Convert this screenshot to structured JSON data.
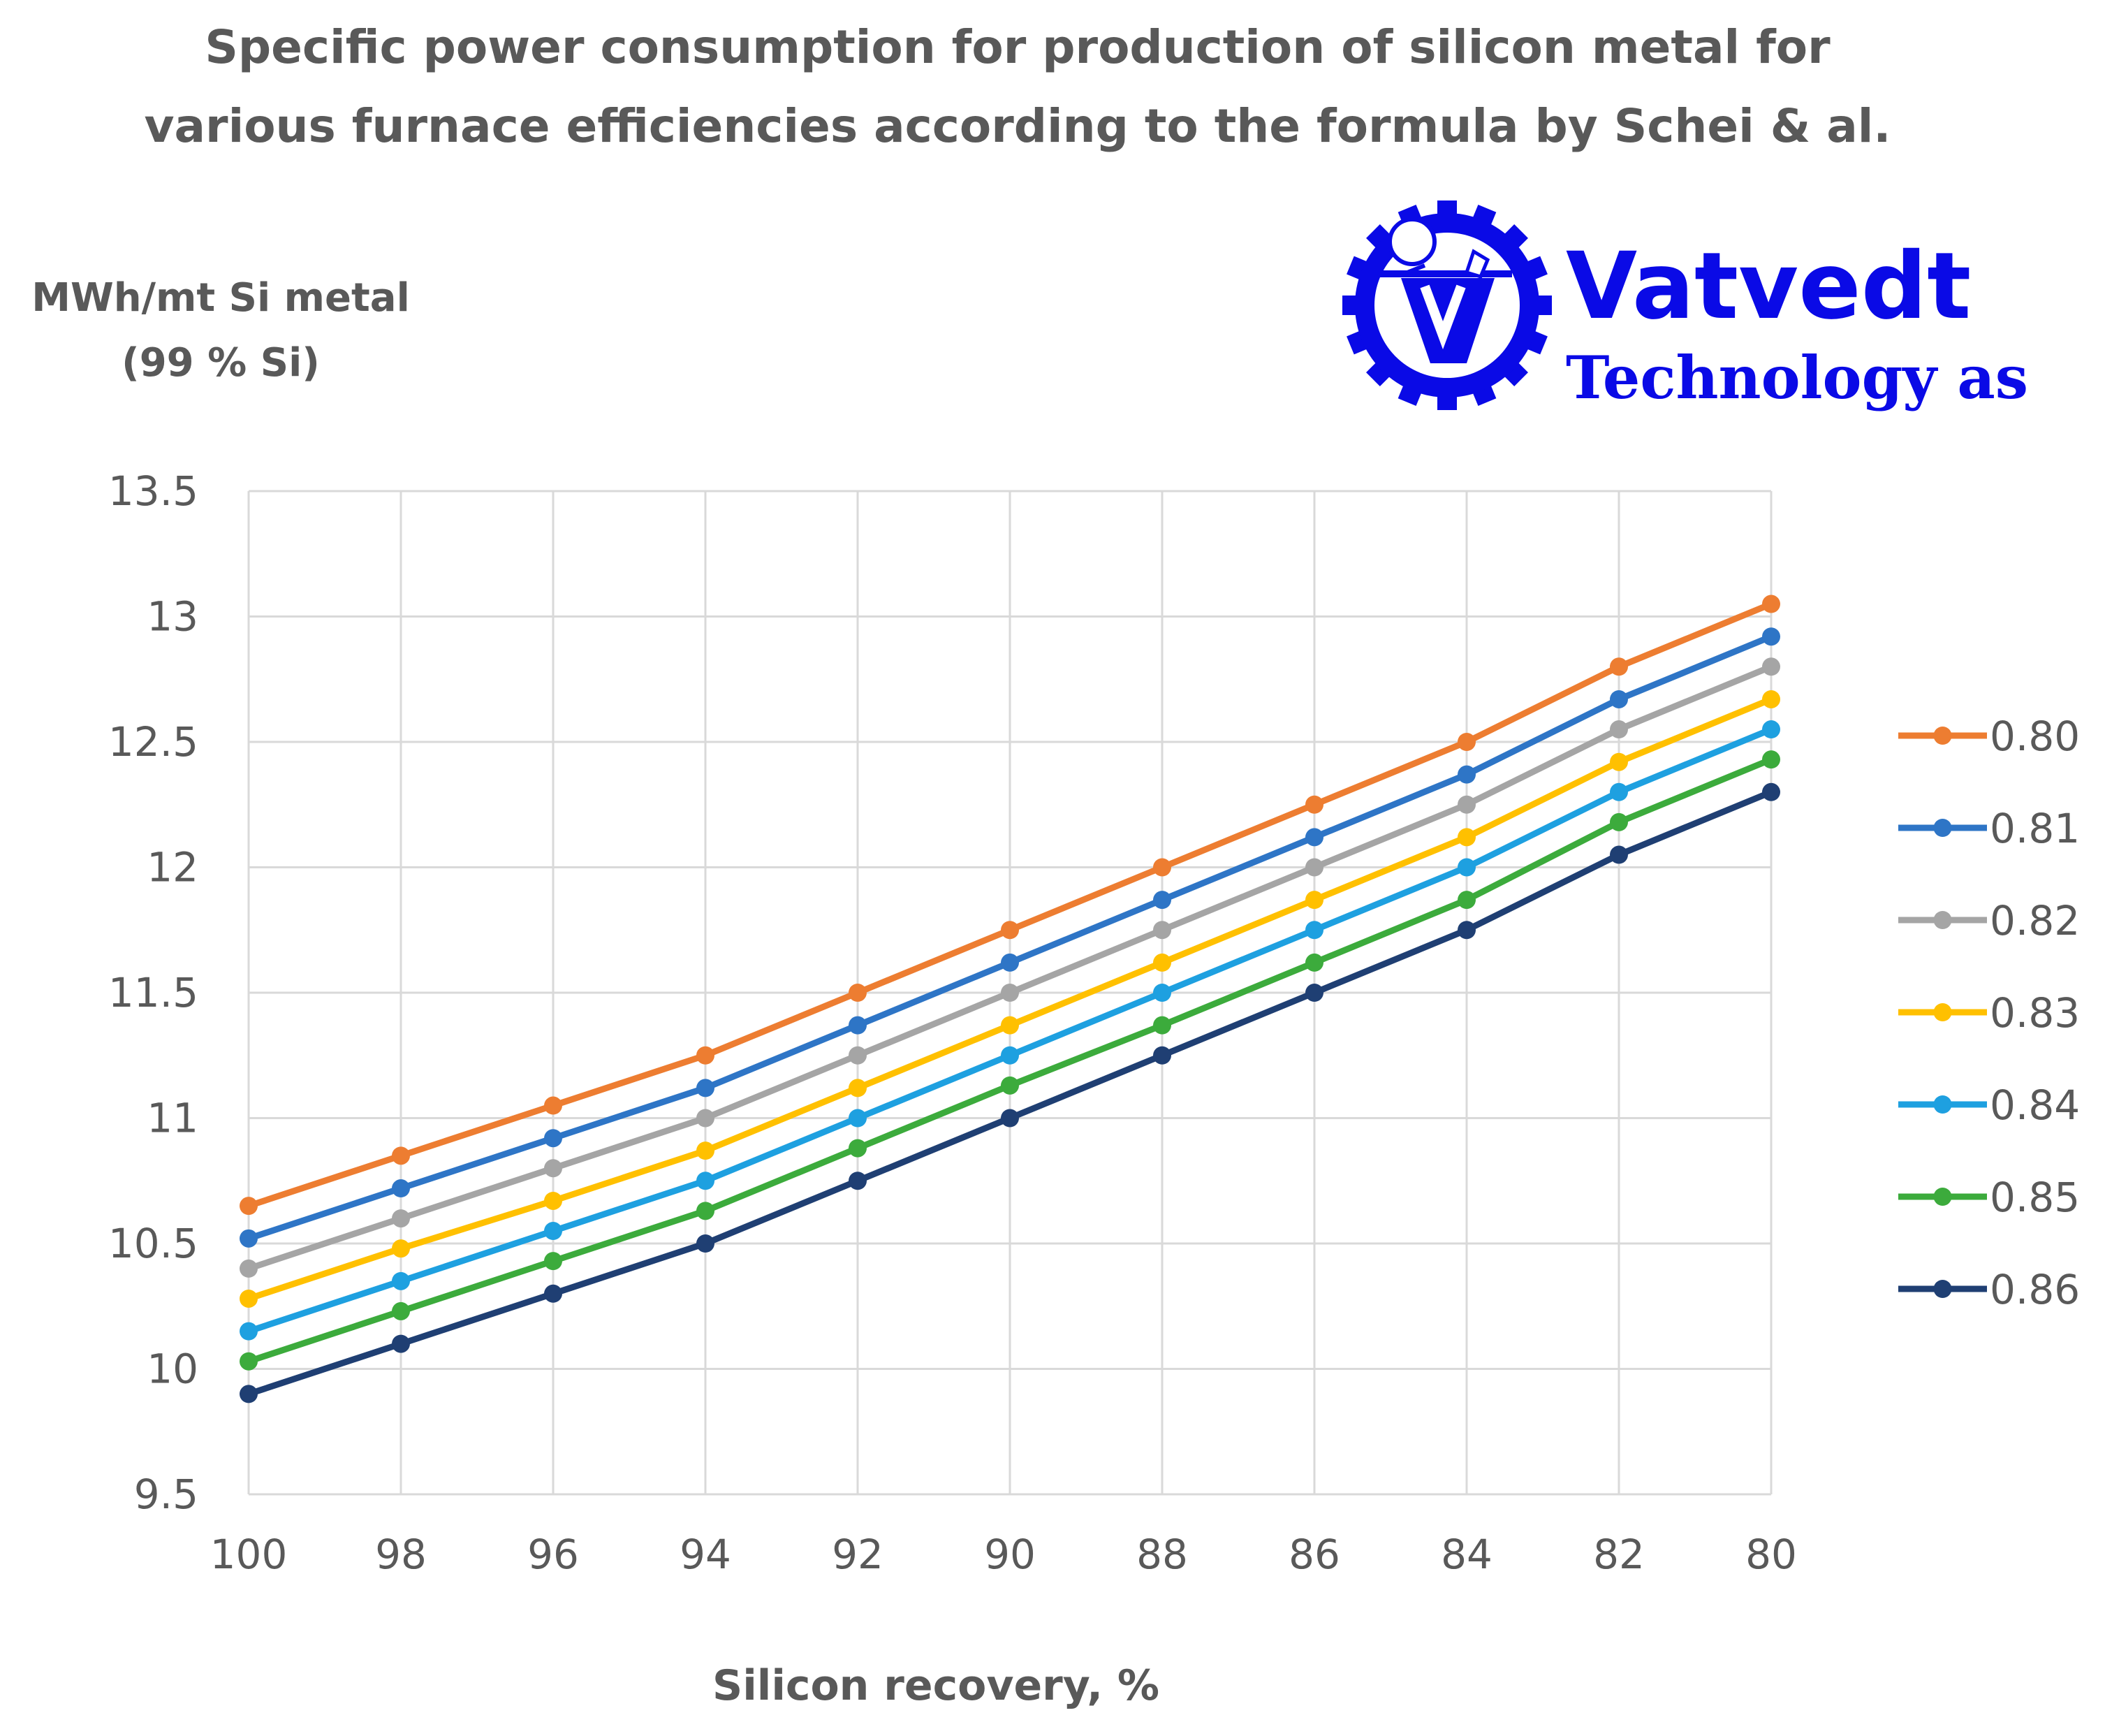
{
  "logo": {
    "name": "Vatvedt",
    "subtitle": "Technology as",
    "color": "#0a0ae6"
  },
  "chart_data": {
    "type": "line",
    "title_lines": [
      "Specific power consumption for production of silicon metal for",
      "various furnace efficiencies according to the formula by Schei & al."
    ],
    "ylabel_lines": [
      "MWh/mt Si metal",
      "(99 % Si)"
    ],
    "xlabel": "Silicon recovery, %",
    "x": [
      100,
      98,
      96,
      94,
      92,
      90,
      88,
      86,
      84,
      82,
      80
    ],
    "x_tick_labels": [
      "100",
      "98",
      "96",
      "94",
      "92",
      "90",
      "88",
      "86",
      "84",
      "82",
      "80"
    ],
    "y_ticks": [
      9.5,
      10,
      10.5,
      11,
      11.5,
      12,
      12.5,
      13,
      13.5
    ],
    "y_tick_labels": [
      "9.5",
      "10",
      "10.5",
      "11",
      "11.5",
      "12",
      "12.5",
      "13",
      "13.5"
    ],
    "ylim": [
      9.5,
      13.5
    ],
    "grid": true,
    "legend_position": "right",
    "series": [
      {
        "name": "0.80",
        "color": "#ed7d31",
        "values": [
          10.65,
          10.85,
          11.05,
          11.25,
          11.5,
          11.75,
          12.0,
          12.25,
          12.5,
          12.8,
          13.05
        ]
      },
      {
        "name": "0.81",
        "color": "#2e75c6",
        "values": [
          10.52,
          10.72,
          10.92,
          11.12,
          11.37,
          11.62,
          11.87,
          12.12,
          12.37,
          12.67,
          12.92
        ]
      },
      {
        "name": "0.82",
        "color": "#a5a5a5",
        "values": [
          10.4,
          10.6,
          10.8,
          11.0,
          11.25,
          11.5,
          11.75,
          12.0,
          12.25,
          12.55,
          12.8
        ]
      },
      {
        "name": "0.83",
        "color": "#ffc000",
        "values": [
          10.28,
          10.48,
          10.67,
          10.87,
          11.12,
          11.37,
          11.62,
          11.87,
          12.12,
          12.42,
          12.67
        ]
      },
      {
        "name": "0.84",
        "color": "#1ea0e0",
        "values": [
          10.15,
          10.35,
          10.55,
          10.75,
          11.0,
          11.25,
          11.5,
          11.75,
          12.0,
          12.3,
          12.55
        ]
      },
      {
        "name": "0.85",
        "color": "#3cab3c",
        "values": [
          10.03,
          10.23,
          10.43,
          10.63,
          10.88,
          11.13,
          11.37,
          11.62,
          11.87,
          12.18,
          12.43
        ]
      },
      {
        "name": "0.86",
        "color": "#1f3f73",
        "values": [
          9.9,
          10.1,
          10.3,
          10.5,
          10.75,
          11.0,
          11.25,
          11.5,
          11.75,
          12.05,
          12.3
        ]
      }
    ]
  }
}
